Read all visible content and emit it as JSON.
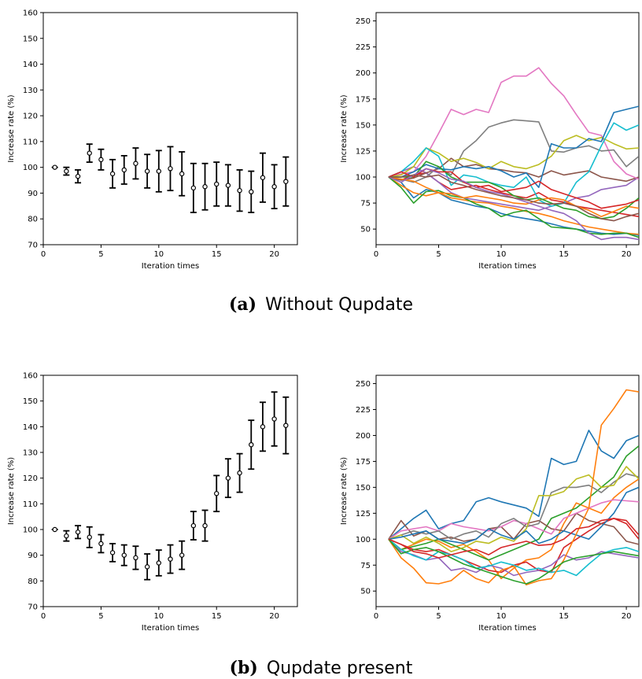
{
  "captions": [
    {
      "letter": "(a)",
      "text": "Without Qupdate"
    },
    {
      "letter": "(b)",
      "text": "Qupdate present"
    }
  ],
  "colors": [
    "#1f77b4",
    "#ff7f0e",
    "#2ca02c",
    "#d62728",
    "#9467bd",
    "#8c564b",
    "#e377c2",
    "#7f7f7f",
    "#bcbd22",
    "#17becf"
  ],
  "chart_data": [
    {
      "id": "a-left",
      "type": "scatter",
      "xlabel": "Iteration times",
      "ylabel": "Increase rate (%)",
      "xlim": [
        0,
        22
      ],
      "ylim": [
        70,
        160
      ],
      "xticks": [
        0,
        5,
        10,
        15,
        20
      ],
      "yticks": [
        70,
        80,
        90,
        100,
        110,
        120,
        130,
        140,
        150,
        160
      ],
      "x": [
        1,
        2,
        3,
        4,
        5,
        6,
        7,
        8,
        9,
        10,
        11,
        12,
        13,
        14,
        15,
        16,
        17,
        18,
        19,
        20,
        21
      ],
      "mean": [
        100,
        98.5,
        96.5,
        105.5,
        103,
        97.5,
        99,
        101.5,
        98.5,
        98.5,
        99.5,
        97.5,
        92,
        92.5,
        93.5,
        93,
        91,
        90.5,
        96,
        92.5,
        94.5
      ],
      "err": [
        0,
        1.5,
        2.5,
        3.5,
        4,
        5.5,
        5.5,
        6,
        6.5,
        8,
        8.5,
        8.5,
        9.5,
        9,
        8.5,
        8,
        8,
        8,
        9.5,
        8.5,
        9.5
      ]
    },
    {
      "id": "a-right",
      "type": "line",
      "xlabel": "Iteration times",
      "ylabel": "Increase rate (%)",
      "xlim": [
        0,
        21
      ],
      "ylim": [
        35,
        258
      ],
      "xticks": [
        0,
        5,
        10,
        15,
        20
      ],
      "yticks": [
        50,
        75,
        100,
        125,
        150,
        175,
        200,
        225,
        250
      ],
      "x": [
        1,
        2,
        3,
        4,
        5,
        6,
        7,
        8,
        9,
        10,
        11,
        12,
        13,
        14,
        15,
        16,
        17,
        18,
        19,
        20,
        21
      ],
      "series": [
        {
          "values": [
            100,
            95,
            80,
            88,
            85,
            78,
            75,
            72,
            70,
            65,
            62,
            60,
            58,
            55,
            52,
            50,
            48,
            46,
            45,
            46,
            44
          ]
        },
        {
          "values": [
            100,
            92,
            85,
            82,
            85,
            80,
            78,
            76,
            75,
            72,
            70,
            67,
            65,
            62,
            58,
            55,
            52,
            50,
            48,
            46,
            45
          ]
        },
        {
          "values": [
            100,
            90,
            75,
            86,
            87,
            82,
            80,
            74,
            70,
            62,
            66,
            68,
            60,
            52,
            51,
            50,
            46,
            45,
            46,
            46,
            42
          ]
        },
        {
          "values": [
            100,
            97,
            102,
            104,
            95,
            88,
            90,
            92,
            88,
            85,
            82,
            80,
            85,
            78,
            76,
            72,
            70,
            68,
            66,
            64,
            62
          ]
        },
        {
          "values": [
            100,
            105,
            110,
            104,
            95,
            85,
            80,
            78,
            76,
            74,
            72,
            70,
            68,
            72,
            75,
            80,
            82,
            88,
            90,
            92,
            100
          ]
        },
        {
          "values": [
            100,
            97,
            99,
            104,
            108,
            118,
            110,
            112,
            108,
            107,
            105,
            104,
            100,
            106,
            102,
            104,
            106,
            100,
            98,
            96,
            100
          ]
        },
        {
          "values": [
            100,
            103,
            105,
            120,
            142,
            165,
            160,
            165,
            162,
            191,
            197,
            197,
            205,
            190,
            178,
            160,
            143,
            140,
            115,
            103,
            98
          ]
        },
        {
          "values": [
            100,
            98,
            95,
            100,
            110,
            102,
            125,
            135,
            148,
            152,
            155,
            154,
            153,
            125,
            124,
            128,
            130,
            125,
            126,
            110,
            120
          ]
        },
        {
          "values": [
            100,
            102,
            110,
            128,
            123,
            115,
            118,
            114,
            108,
            115,
            110,
            108,
            112,
            120,
            135,
            140,
            135,
            138,
            132,
            127,
            128
          ]
        },
        {
          "values": [
            100,
            105,
            115,
            128,
            120,
            92,
            102,
            100,
            95,
            92,
            90,
            100,
            78,
            72,
            75,
            95,
            105,
            130,
            152,
            145,
            150
          ]
        },
        {
          "values": [
            100,
            100,
            105,
            112,
            108,
            107,
            110,
            108,
            110,
            106,
            100,
            104,
            90,
            132,
            128,
            128,
            137,
            134,
            162,
            165,
            168
          ]
        },
        {
          "values": [
            100,
            98,
            96,
            90,
            85,
            84,
            80,
            82,
            80,
            78,
            75,
            74,
            78,
            80,
            78,
            72,
            68,
            62,
            67,
            72,
            70
          ]
        },
        {
          "values": [
            100,
            100,
            100,
            115,
            110,
            100,
            95,
            95,
            95,
            90,
            82,
            78,
            80,
            75,
            70,
            68,
            62,
            60,
            62,
            70,
            80
          ]
        },
        {
          "values": [
            100,
            105,
            100,
            108,
            105,
            105,
            95,
            90,
            92,
            86,
            88,
            90,
            96,
            88,
            84,
            80,
            76,
            70,
            72,
            74,
            78
          ]
        },
        {
          "values": [
            100,
            95,
            102,
            108,
            104,
            98,
            96,
            90,
            86,
            84,
            80,
            76,
            72,
            68,
            65,
            58,
            46,
            40,
            42,
            42,
            40
          ]
        },
        {
          "values": [
            100,
            100,
            102,
            100,
            102,
            95,
            92,
            88,
            85,
            82,
            80,
            78,
            75,
            74,
            75,
            72,
            65,
            60,
            58,
            62,
            65
          ]
        }
      ]
    },
    {
      "id": "b-left",
      "type": "scatter",
      "xlabel": "Iteration times",
      "ylabel": "Increase rate (%)",
      "xlim": [
        0,
        22
      ],
      "ylim": [
        70,
        160
      ],
      "xticks": [
        0,
        5,
        10,
        15,
        20
      ],
      "yticks": [
        70,
        80,
        90,
        100,
        110,
        120,
        130,
        140,
        150,
        160
      ],
      "x": [
        1,
        2,
        3,
        4,
        5,
        6,
        7,
        8,
        9,
        10,
        11,
        12,
        13,
        14,
        15,
        16,
        17,
        18,
        19,
        20,
        21
      ],
      "mean": [
        100,
        97.5,
        99,
        97,
        94.5,
        91,
        90,
        89,
        85.5,
        87,
        88.5,
        90,
        101.5,
        101.5,
        114,
        120,
        122,
        133,
        140,
        143,
        140.5
      ],
      "err": [
        0,
        2,
        2.5,
        4,
        3.5,
        3.5,
        4,
        4.5,
        5,
        5,
        5.5,
        5.5,
        5.5,
        6,
        7,
        7.5,
        7.5,
        9.5,
        9.5,
        10.5,
        11
      ]
    },
    {
      "id": "b-right",
      "type": "line",
      "xlabel": "Iteration times",
      "ylabel": "Increase rate (%)",
      "xlim": [
        0,
        21
      ],
      "ylim": [
        35,
        258
      ],
      "xticks": [
        0,
        5,
        10,
        15,
        20
      ],
      "yticks": [
        50,
        75,
        100,
        125,
        150,
        175,
        200,
        225,
        250
      ],
      "x": [
        1,
        2,
        3,
        4,
        5,
        6,
        7,
        8,
        9,
        10,
        11,
        12,
        13,
        14,
        15,
        16,
        17,
        18,
        19,
        20,
        21
      ],
      "series": [
        {
          "values": [
            100,
            110,
            120,
            128,
            110,
            115,
            118,
            136,
            140,
            136,
            133,
            130,
            122,
            178,
            172,
            175,
            205,
            185,
            178,
            195,
            200
          ]
        },
        {
          "values": [
            100,
            90,
            95,
            100,
            98,
            92,
            95,
            88,
            80,
            62,
            72,
            80,
            82,
            90,
            115,
            135,
            130,
            125,
            140,
            150,
            158
          ]
        },
        {
          "values": [
            100,
            90,
            93,
            96,
            100,
            95,
            90,
            85,
            80,
            85,
            90,
            95,
            100,
            120,
            125,
            130,
            140,
            150,
            160,
            180,
            190
          ]
        },
        {
          "values": [
            100,
            95,
            90,
            88,
            90,
            85,
            80,
            75,
            70,
            68,
            75,
            78,
            70,
            68,
            92,
            100,
            108,
            115,
            120,
            118,
            104
          ]
        },
        {
          "values": [
            100,
            88,
            85,
            80,
            82,
            70,
            72,
            68,
            75,
            72,
            65,
            68,
            70,
            75,
            85,
            80,
            82,
            88,
            86,
            84,
            82
          ]
        },
        {
          "values": [
            100,
            118,
            103,
            108,
            100,
            102,
            98,
            100,
            110,
            112,
            100,
            115,
            118,
            110,
            108,
            125,
            118,
            115,
            112,
            98,
            95
          ]
        },
        {
          "values": [
            100,
            108,
            110,
            112,
            108,
            115,
            112,
            110,
            108,
            112,
            118,
            115,
            110,
            105,
            120,
            125,
            130,
            135,
            138,
            137,
            136
          ]
        },
        {
          "values": [
            100,
            104,
            108,
            105,
            108,
            100,
            105,
            108,
            102,
            115,
            120,
            112,
            115,
            145,
            150,
            150,
            152,
            145,
            155,
            163,
            160
          ]
        },
        {
          "values": [
            100,
            104,
            96,
            102,
            96,
            88,
            92,
            98,
            96,
            102,
            98,
            110,
            142,
            142,
            146,
            158,
            162,
            150,
            152,
            170,
            158
          ]
        },
        {
          "values": [
            100,
            90,
            84,
            80,
            88,
            85,
            80,
            72,
            74,
            78,
            75,
            70,
            72,
            68,
            70,
            65,
            76,
            86,
            90,
            92,
            88
          ]
        },
        {
          "values": [
            100,
            102,
            105,
            108,
            100,
            98,
            96,
            100,
            110,
            104,
            100,
            108,
            96,
            100,
            108,
            104,
            100,
            112,
            125,
            145,
            150
          ]
        },
        {
          "values": [
            100,
            82,
            72,
            58,
            57,
            60,
            70,
            62,
            58,
            70,
            74,
            56,
            60,
            62,
            80,
            105,
            130,
            210,
            226,
            244,
            242
          ]
        },
        {
          "values": [
            100,
            86,
            90,
            92,
            88,
            82,
            76,
            72,
            68,
            64,
            60,
            57,
            62,
            70,
            78,
            82,
            84,
            86,
            88,
            86,
            84
          ]
        },
        {
          "values": [
            100,
            95,
            88,
            86,
            82,
            85,
            88,
            90,
            85,
            92,
            95,
            98,
            94,
            95,
            100,
            110,
            112,
            118,
            120,
            115,
            100
          ]
        }
      ]
    }
  ]
}
